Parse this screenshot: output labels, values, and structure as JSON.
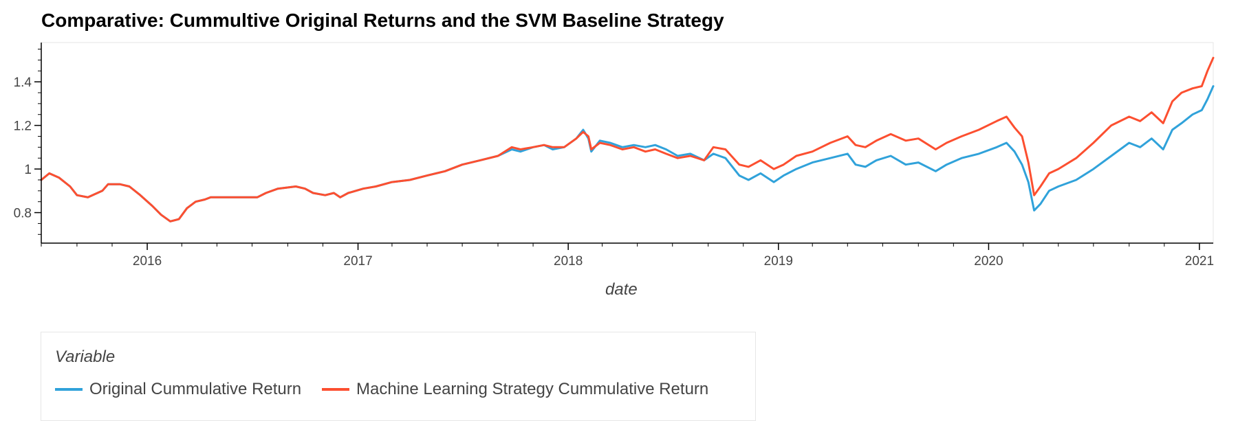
{
  "chart_data": {
    "type": "line",
    "title": "Comparative: Cummultive Original Returns and the SVM Baseline Strategy",
    "xlabel": "date",
    "ylabel": "",
    "x_ticks": [
      "2016",
      "2017",
      "2018",
      "2019",
      "2020",
      "2021"
    ],
    "y_ticks": [
      "0.8",
      "1",
      "1.2",
      "1.4"
    ],
    "xlim": [
      "2015-07-01",
      "2021-01-25"
    ],
    "ylim": [
      0.66,
      1.58
    ],
    "grid": false,
    "legend": {
      "title": "Variable",
      "placement": "bottom-left"
    },
    "series": [
      {
        "name": "Original Cummulative Return",
        "color": "#30a2da",
        "points": [
          [
            "2015-07-01",
            0.95
          ],
          [
            "2015-07-15",
            0.98
          ],
          [
            "2015-08-01",
            0.96
          ],
          [
            "2015-08-20",
            0.92
          ],
          [
            "2015-09-01",
            0.88
          ],
          [
            "2015-09-20",
            0.87
          ],
          [
            "2015-10-15",
            0.9
          ],
          [
            "2015-10-25",
            0.93
          ],
          [
            "2015-11-15",
            0.93
          ],
          [
            "2015-12-01",
            0.92
          ],
          [
            "2015-12-20",
            0.88
          ],
          [
            "2016-01-10",
            0.83
          ],
          [
            "2016-01-25",
            0.79
          ],
          [
            "2016-02-10",
            0.76
          ],
          [
            "2016-02-25",
            0.77
          ],
          [
            "2016-03-10",
            0.82
          ],
          [
            "2016-03-25",
            0.85
          ],
          [
            "2016-04-10",
            0.86
          ],
          [
            "2016-04-20",
            0.87
          ],
          [
            "2016-07-10",
            0.87
          ],
          [
            "2016-07-25",
            0.89
          ],
          [
            "2016-08-15",
            0.91
          ],
          [
            "2016-09-15",
            0.92
          ],
          [
            "2016-10-01",
            0.91
          ],
          [
            "2016-10-15",
            0.89
          ],
          [
            "2016-11-05",
            0.88
          ],
          [
            "2016-11-20",
            0.89
          ],
          [
            "2016-12-01",
            0.87
          ],
          [
            "2016-12-15",
            0.89
          ],
          [
            "2017-01-10",
            0.91
          ],
          [
            "2017-02-01",
            0.92
          ],
          [
            "2017-03-01",
            0.94
          ],
          [
            "2017-04-01",
            0.95
          ],
          [
            "2017-05-01",
            0.97
          ],
          [
            "2017-06-01",
            0.99
          ],
          [
            "2017-07-01",
            1.02
          ],
          [
            "2017-08-01",
            1.04
          ],
          [
            "2017-09-01",
            1.06
          ],
          [
            "2017-09-25",
            1.09
          ],
          [
            "2017-10-10",
            1.08
          ],
          [
            "2017-11-01",
            1.1
          ],
          [
            "2017-11-20",
            1.11
          ],
          [
            "2017-12-05",
            1.09
          ],
          [
            "2017-12-25",
            1.1
          ],
          [
            "2018-01-15",
            1.14
          ],
          [
            "2018-01-27",
            1.18
          ],
          [
            "2018-02-05",
            1.14
          ],
          [
            "2018-02-10",
            1.08
          ],
          [
            "2018-02-25",
            1.13
          ],
          [
            "2018-03-15",
            1.12
          ],
          [
            "2018-04-05",
            1.1
          ],
          [
            "2018-04-25",
            1.11
          ],
          [
            "2018-05-15",
            1.1
          ],
          [
            "2018-06-01",
            1.11
          ],
          [
            "2018-06-20",
            1.09
          ],
          [
            "2018-07-10",
            1.06
          ],
          [
            "2018-08-01",
            1.07
          ],
          [
            "2018-08-25",
            1.04
          ],
          [
            "2018-09-10",
            1.07
          ],
          [
            "2018-10-01",
            1.05
          ],
          [
            "2018-10-25",
            0.97
          ],
          [
            "2018-11-10",
            0.95
          ],
          [
            "2018-12-01",
            0.98
          ],
          [
            "2018-12-24",
            0.94
          ],
          [
            "2019-01-10",
            0.97
          ],
          [
            "2019-02-01",
            1.0
          ],
          [
            "2019-03-01",
            1.03
          ],
          [
            "2019-04-01",
            1.05
          ],
          [
            "2019-05-01",
            1.07
          ],
          [
            "2019-05-15",
            1.02
          ],
          [
            "2019-06-01",
            1.01
          ],
          [
            "2019-06-20",
            1.04
          ],
          [
            "2019-07-15",
            1.06
          ],
          [
            "2019-08-10",
            1.02
          ],
          [
            "2019-09-01",
            1.03
          ],
          [
            "2019-10-01",
            0.99
          ],
          [
            "2019-10-20",
            1.02
          ],
          [
            "2019-11-15",
            1.05
          ],
          [
            "2019-12-15",
            1.07
          ],
          [
            "2020-01-15",
            1.1
          ],
          [
            "2020-02-01",
            1.12
          ],
          [
            "2020-02-15",
            1.08
          ],
          [
            "2020-02-28",
            1.02
          ],
          [
            "2020-03-10",
            0.94
          ],
          [
            "2020-03-20",
            0.81
          ],
          [
            "2020-03-31",
            0.84
          ],
          [
            "2020-04-15",
            0.9
          ],
          [
            "2020-05-01",
            0.92
          ],
          [
            "2020-06-01",
            0.95
          ],
          [
            "2020-07-01",
            1.0
          ],
          [
            "2020-08-01",
            1.06
          ],
          [
            "2020-09-01",
            1.12
          ],
          [
            "2020-09-20",
            1.1
          ],
          [
            "2020-10-10",
            1.14
          ],
          [
            "2020-10-30",
            1.09
          ],
          [
            "2020-11-15",
            1.18
          ],
          [
            "2020-12-01",
            1.21
          ],
          [
            "2020-12-20",
            1.25
          ],
          [
            "2021-01-05",
            1.27
          ],
          [
            "2021-01-15",
            1.32
          ],
          [
            "2021-01-25",
            1.38
          ]
        ]
      },
      {
        "name": "Machine Learning Strategy Cummulative Return",
        "color": "#fc4f30",
        "points": [
          [
            "2015-07-01",
            0.95
          ],
          [
            "2015-07-15",
            0.98
          ],
          [
            "2015-08-01",
            0.96
          ],
          [
            "2015-08-20",
            0.92
          ],
          [
            "2015-09-01",
            0.88
          ],
          [
            "2015-09-20",
            0.87
          ],
          [
            "2015-10-15",
            0.9
          ],
          [
            "2015-10-25",
            0.93
          ],
          [
            "2015-11-15",
            0.93
          ],
          [
            "2015-12-01",
            0.92
          ],
          [
            "2015-12-20",
            0.88
          ],
          [
            "2016-01-10",
            0.83
          ],
          [
            "2016-01-25",
            0.79
          ],
          [
            "2016-02-10",
            0.76
          ],
          [
            "2016-02-25",
            0.77
          ],
          [
            "2016-03-10",
            0.82
          ],
          [
            "2016-03-25",
            0.85
          ],
          [
            "2016-04-10",
            0.86
          ],
          [
            "2016-04-20",
            0.87
          ],
          [
            "2016-07-10",
            0.87
          ],
          [
            "2016-07-25",
            0.89
          ],
          [
            "2016-08-15",
            0.91
          ],
          [
            "2016-09-15",
            0.92
          ],
          [
            "2016-10-01",
            0.91
          ],
          [
            "2016-10-15",
            0.89
          ],
          [
            "2016-11-05",
            0.88
          ],
          [
            "2016-11-20",
            0.89
          ],
          [
            "2016-12-01",
            0.87
          ],
          [
            "2016-12-15",
            0.89
          ],
          [
            "2017-01-10",
            0.91
          ],
          [
            "2017-02-01",
            0.92
          ],
          [
            "2017-03-01",
            0.94
          ],
          [
            "2017-04-01",
            0.95
          ],
          [
            "2017-05-01",
            0.97
          ],
          [
            "2017-06-01",
            0.99
          ],
          [
            "2017-07-01",
            1.02
          ],
          [
            "2017-08-01",
            1.04
          ],
          [
            "2017-09-01",
            1.06
          ],
          [
            "2017-09-25",
            1.1
          ],
          [
            "2017-10-10",
            1.09
          ],
          [
            "2017-11-01",
            1.1
          ],
          [
            "2017-11-20",
            1.11
          ],
          [
            "2017-12-05",
            1.1
          ],
          [
            "2017-12-25",
            1.1
          ],
          [
            "2018-01-15",
            1.14
          ],
          [
            "2018-01-27",
            1.17
          ],
          [
            "2018-02-05",
            1.15
          ],
          [
            "2018-02-10",
            1.09
          ],
          [
            "2018-02-25",
            1.12
          ],
          [
            "2018-03-15",
            1.11
          ],
          [
            "2018-04-05",
            1.09
          ],
          [
            "2018-04-25",
            1.1
          ],
          [
            "2018-05-15",
            1.08
          ],
          [
            "2018-06-01",
            1.09
          ],
          [
            "2018-06-20",
            1.07
          ],
          [
            "2018-07-10",
            1.05
          ],
          [
            "2018-08-01",
            1.06
          ],
          [
            "2018-08-25",
            1.04
          ],
          [
            "2018-09-10",
            1.1
          ],
          [
            "2018-10-01",
            1.09
          ],
          [
            "2018-10-25",
            1.02
          ],
          [
            "2018-11-10",
            1.01
          ],
          [
            "2018-12-01",
            1.04
          ],
          [
            "2018-12-24",
            1.0
          ],
          [
            "2019-01-10",
            1.02
          ],
          [
            "2019-02-01",
            1.06
          ],
          [
            "2019-03-01",
            1.08
          ],
          [
            "2019-04-01",
            1.12
          ],
          [
            "2019-05-01",
            1.15
          ],
          [
            "2019-05-15",
            1.11
          ],
          [
            "2019-06-01",
            1.1
          ],
          [
            "2019-06-20",
            1.13
          ],
          [
            "2019-07-15",
            1.16
          ],
          [
            "2019-08-10",
            1.13
          ],
          [
            "2019-09-01",
            1.14
          ],
          [
            "2019-10-01",
            1.09
          ],
          [
            "2019-10-20",
            1.12
          ],
          [
            "2019-11-15",
            1.15
          ],
          [
            "2019-12-15",
            1.18
          ],
          [
            "2020-01-15",
            1.22
          ],
          [
            "2020-02-01",
            1.24
          ],
          [
            "2020-02-15",
            1.19
          ],
          [
            "2020-02-28",
            1.15
          ],
          [
            "2020-03-10",
            1.03
          ],
          [
            "2020-03-20",
            0.88
          ],
          [
            "2020-03-31",
            0.92
          ],
          [
            "2020-04-15",
            0.98
          ],
          [
            "2020-05-01",
            1.0
          ],
          [
            "2020-06-01",
            1.05
          ],
          [
            "2020-07-01",
            1.12
          ],
          [
            "2020-08-01",
            1.2
          ],
          [
            "2020-09-01",
            1.24
          ],
          [
            "2020-09-20",
            1.22
          ],
          [
            "2020-10-10",
            1.26
          ],
          [
            "2020-10-30",
            1.21
          ],
          [
            "2020-11-15",
            1.31
          ],
          [
            "2020-12-01",
            1.35
          ],
          [
            "2020-12-20",
            1.37
          ],
          [
            "2021-01-05",
            1.38
          ],
          [
            "2021-01-15",
            1.45
          ],
          [
            "2021-01-25",
            1.51
          ]
        ]
      }
    ]
  }
}
